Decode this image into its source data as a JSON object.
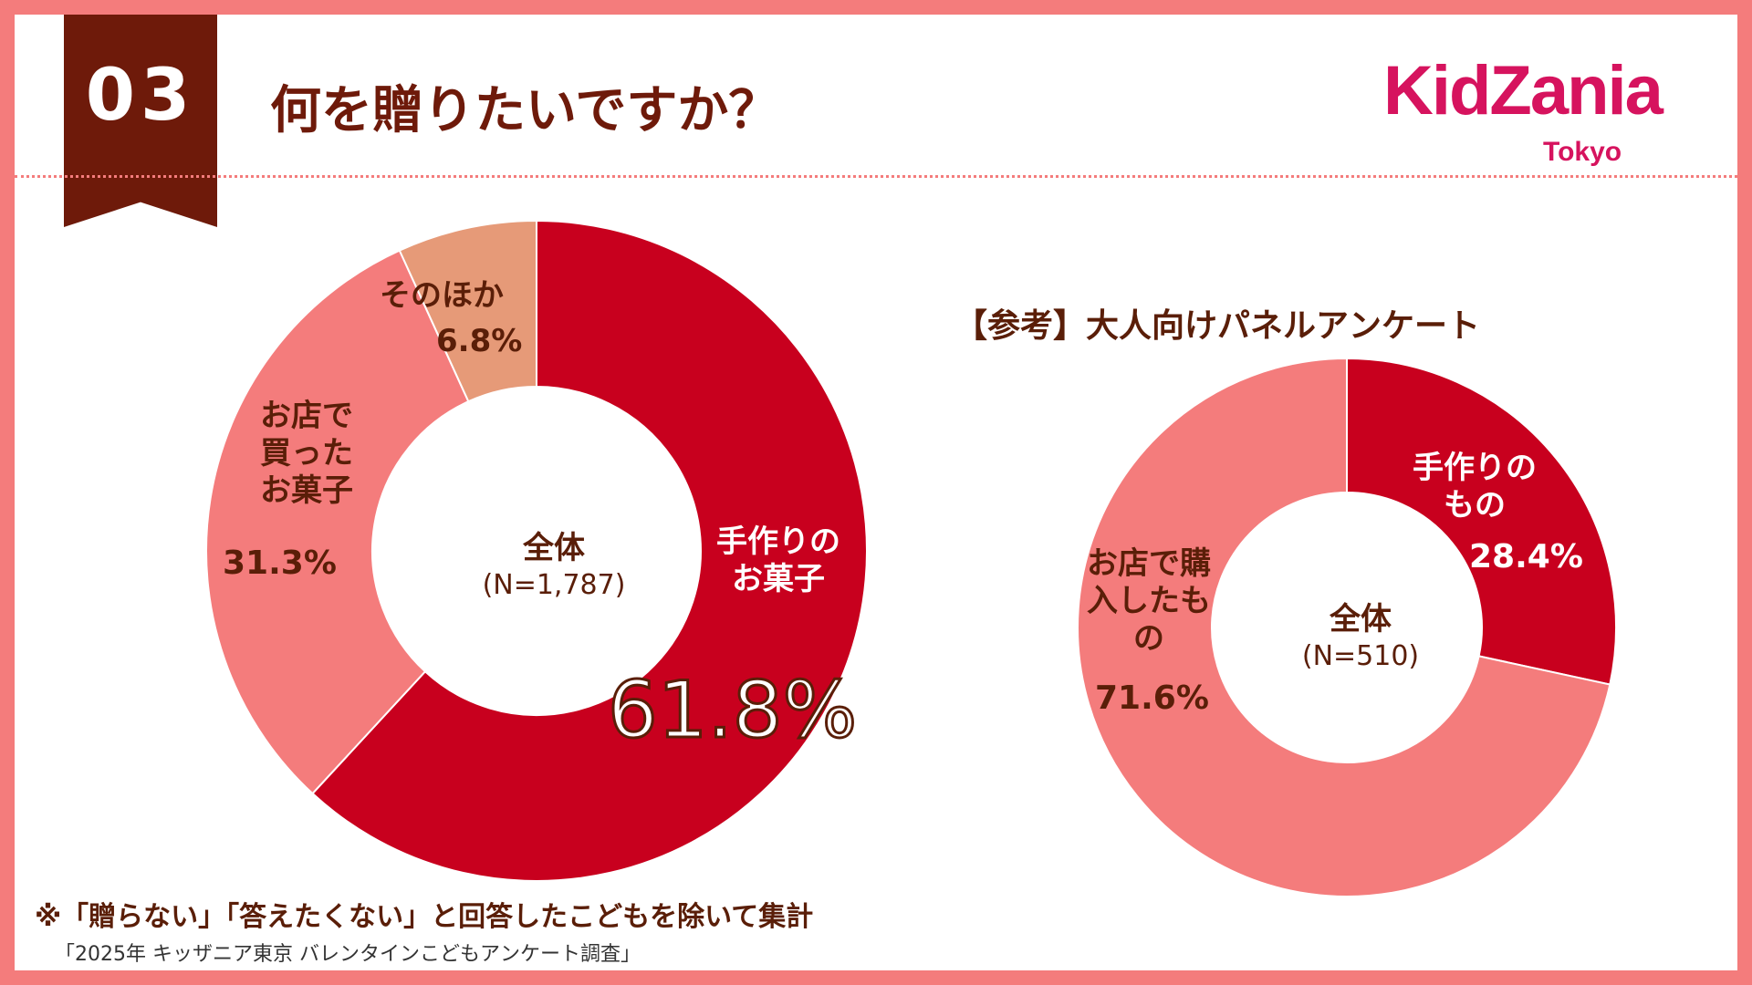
{
  "header": {
    "number": "03",
    "title": "何を贈りたいですか？"
  },
  "logo": {
    "main": "KidZania",
    "sub": "Tokyo"
  },
  "reference_title": "【参考】大人向けパネルアンケート",
  "footnote": "※「贈らない」「答えたくない」と回答したこどもを除いて集計",
  "source": "「2025年 キッザニア東京 バレンタインこどもアンケート調査」",
  "colors": {
    "frame": "#f47c7c",
    "dark_red": "#c8001e",
    "pink": "#f47c7c",
    "salmon": "#e69a78",
    "brown": "#6e1a0a"
  },
  "chart_data": [
    {
      "type": "pie",
      "center_label": "全体",
      "center_sub": "(N=1,787)",
      "slices": [
        {
          "label": "手作りのお菓子",
          "value": 61.8,
          "value_label": "61.8%",
          "color": "#c8001e"
        },
        {
          "label": "お店で買ったお菓子",
          "value": 31.3,
          "value_label": "31.3%",
          "color": "#f47c7c"
        },
        {
          "label": "そのほか",
          "value": 6.8,
          "value_label": "6.8%",
          "color": "#e69a78"
        }
      ]
    },
    {
      "type": "pie",
      "center_label": "全体",
      "center_sub": "(N=510)",
      "slices": [
        {
          "label": "手作りのもの",
          "value": 28.4,
          "value_label": "28.4%",
          "color": "#c8001e"
        },
        {
          "label": "お店で購入したもの",
          "value": 71.6,
          "value_label": "71.6%",
          "color": "#f47c7c"
        }
      ]
    }
  ]
}
